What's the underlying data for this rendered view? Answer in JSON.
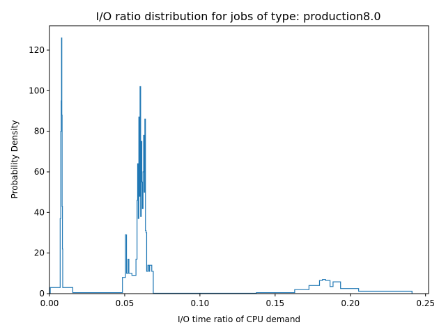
{
  "chart_data": {
    "type": "step-histogram",
    "title": "I/O ratio distribution for jobs of type: production8.0",
    "xlabel": "I/O time ratio of CPU demand",
    "ylabel": "Probability Density",
    "xlim": [
      0,
      0.252
    ],
    "ylim": [
      0,
      132
    ],
    "xticks": [
      0.0,
      0.05,
      0.1,
      0.15,
      0.2,
      0.25
    ],
    "xtick_labels": [
      "0.00",
      "0.05",
      "0.10",
      "0.15",
      "0.20",
      "0.25"
    ],
    "yticks": [
      0,
      20,
      40,
      60,
      80,
      100,
      120
    ],
    "ytick_labels": [
      "0",
      "20",
      "40",
      "60",
      "80",
      "100",
      "120"
    ],
    "grid": false,
    "color": "#1f77b4",
    "series": [
      {
        "bin_edges": [
          0.0005,
          0.002,
          0.0071,
          0.0075,
          0.0078,
          0.008,
          0.0082,
          0.0084,
          0.0086,
          0.0088,
          0.009,
          0.0093,
          0.0096,
          0.0155,
          0.0485,
          0.0505,
          0.0512,
          0.0522,
          0.0528,
          0.0538,
          0.0548,
          0.0575,
          0.0582,
          0.0586,
          0.059,
          0.0594,
          0.0598,
          0.0602,
          0.0606,
          0.061,
          0.0614,
          0.0618,
          0.0622,
          0.0626,
          0.063,
          0.0634,
          0.0638,
          0.0642,
          0.0646,
          0.065,
          0.0654,
          0.0658,
          0.0662,
          0.0666,
          0.068,
          0.069,
          0.1375,
          0.163,
          0.1725,
          0.1795,
          0.1815,
          0.1835,
          0.1865,
          0.1885,
          0.1935,
          0.2055,
          0.241
        ],
        "densities": [
          3,
          3,
          37,
          80,
          95,
          126,
          88,
          43,
          22,
          3,
          3,
          3,
          3,
          0.5,
          8,
          29,
          10,
          17,
          10,
          10,
          9,
          17,
          46,
          64,
          37,
          87,
          48,
          102,
          38,
          75,
          55,
          42,
          60,
          78,
          50,
          86,
          31,
          30,
          11,
          11,
          14,
          14,
          11,
          14,
          11,
          0.2,
          0.5,
          2,
          4,
          6.5,
          7,
          6.5,
          3.5,
          5.8,
          2.5,
          1.2
        ]
      }
    ]
  }
}
